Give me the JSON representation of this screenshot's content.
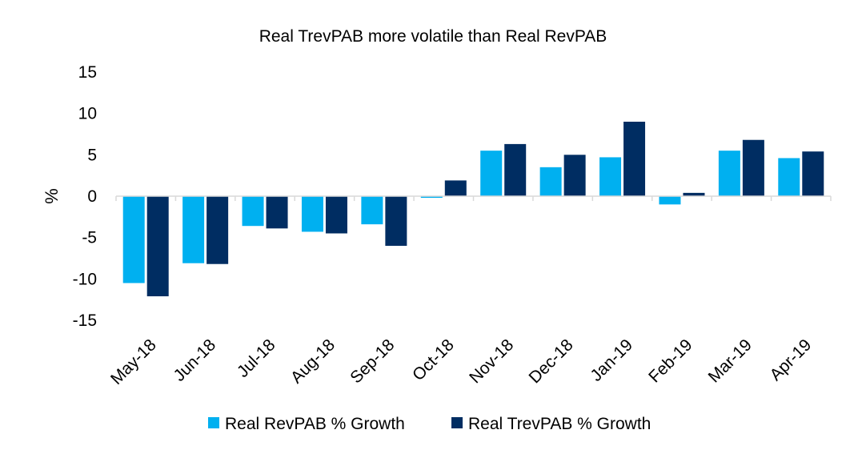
{
  "chart_data": {
    "type": "bar",
    "title": "Real TrevPAB more volatile than Real RevPAB",
    "xlabel": "",
    "ylabel": "%",
    "ylim": [
      -15,
      15
    ],
    "yticks": [
      "15",
      "10",
      "5",
      "0",
      "-5",
      "-10",
      "-15"
    ],
    "yticks_values": [
      15,
      10,
      5,
      0,
      -5,
      -10,
      -15
    ],
    "categories": [
      "May-18",
      "Jun-18",
      "Jul-18",
      "Aug-18",
      "Sep-18",
      "Oct-18",
      "Nov-18",
      "Dec-18",
      "Jan-19",
      "Feb-19",
      "Mar-19",
      "Apr-19"
    ],
    "series": [
      {
        "name": "Real RevPAB % Growth",
        "color": "#00b0f0",
        "values": [
          -10.5,
          -8.1,
          -3.6,
          -4.3,
          -3.4,
          -0.2,
          5.5,
          3.5,
          4.7,
          -1.0,
          5.5,
          4.6
        ]
      },
      {
        "name": "Real TrevPAB % Growth",
        "color": "#002d62",
        "values": [
          -12.1,
          -8.2,
          -3.9,
          -4.5,
          -6.0,
          1.9,
          6.3,
          5.0,
          9.0,
          0.4,
          6.8,
          5.4
        ]
      }
    ],
    "legend_position": "bottom"
  }
}
